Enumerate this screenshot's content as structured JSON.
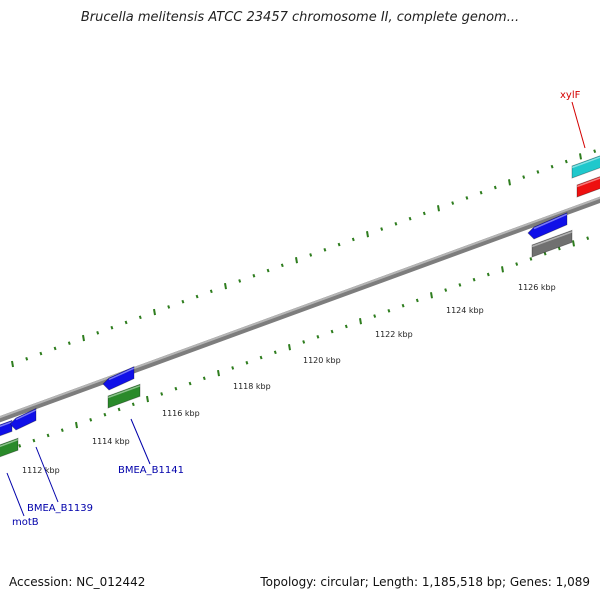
{
  "title": "Brucella melitensis ATCC 23457 chromosome II, complete genom...",
  "accession_text": "Accession: NC_012442",
  "topology_text": "Topology: circular; Length: 1,185,518 bp; Genes: 1,089",
  "colors": {
    "backbone": "#8a8a8a",
    "tick": "#2e7d1e",
    "gene_blue": "#1010e8",
    "gene_green": "#2a8a2a",
    "gene_cyan": "#20c8cc",
    "gene_red": "#ee1010",
    "gene_gray": "#707070",
    "label_blue": "#0000aa",
    "label_red": "#d40000",
    "scale_text": "#222222"
  },
  "scale_labels": [
    "1112 kbp",
    "1114 kbp",
    "1116 kbp",
    "1118 kbp",
    "1120 kbp",
    "1122 kbp",
    "1124 kbp",
    "1126 kbp"
  ],
  "gene_labels": [
    {
      "text": "motB",
      "color": "blue"
    },
    {
      "text": "BMEA_B1139",
      "color": "blue"
    },
    {
      "text": "BMEA_B1141",
      "color": "blue"
    },
    {
      "text": "xylF",
      "color": "red"
    }
  ]
}
